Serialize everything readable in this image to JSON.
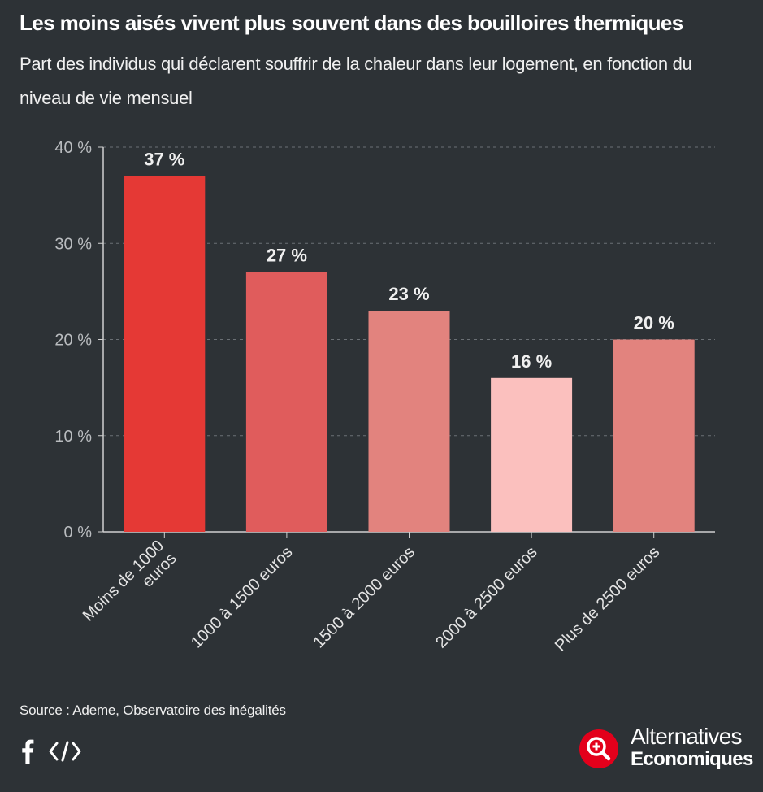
{
  "header": {
    "title": "Les moins aisés vivent plus souvent dans des bouilloires thermiques",
    "subtitle": "Part des individus qui déclarent souffrir de la chaleur dans leur logement, en fonction du niveau de vie mensuel"
  },
  "chart_data": {
    "type": "bar",
    "title": "Les moins aisés vivent plus souvent dans des bouilloires thermiques",
    "subtitle": "Part des individus qui déclarent souffrir de la chaleur dans leur logement, en fonction du niveau de vie mensuel",
    "categories": [
      "Moins de 1000 euros",
      "1000 à 1500 euros",
      "1500 à 2000 euros",
      "2000 à 2500 euros",
      "Plus de 2500 euros"
    ],
    "category_lines": [
      [
        "Moins de 1000",
        "euros"
      ],
      [
        "1000 à 1500 euros"
      ],
      [
        "1500 à 2000 euros"
      ],
      [
        "2000 à 2500 euros"
      ],
      [
        "Plus de 2500 euros"
      ]
    ],
    "values": [
      37,
      27,
      23,
      16,
      20
    ],
    "data_labels": [
      "37 %",
      "27 %",
      "23 %",
      "16 %",
      "20 %"
    ],
    "colors": [
      "#e53935",
      "#e05c5c",
      "#e2837e",
      "#fbc0be",
      "#e2837e"
    ],
    "yticks": [
      0,
      10,
      20,
      30,
      40
    ],
    "ytick_labels": [
      "0 %",
      "10 %",
      "20 %",
      "30 %",
      "40 %"
    ],
    "ylim": [
      0,
      40
    ],
    "xlabel": "",
    "ylabel": "",
    "grid": true,
    "unit": "%"
  },
  "footer": {
    "source": "Source : Ademe, Observatoire des inégalités",
    "share_icons": [
      "facebook-icon",
      "embed-code-icon"
    ],
    "logo_line1": "Alternatives",
    "logo_line2": "Economiques"
  },
  "colors": {
    "background": "#2d3236",
    "axis": "#d0d0d0",
    "gridline": "#6b7075",
    "tick_label": "#b9bcbf",
    "data_label": "#f0f0f0",
    "brand_red": "#e3001b"
  }
}
